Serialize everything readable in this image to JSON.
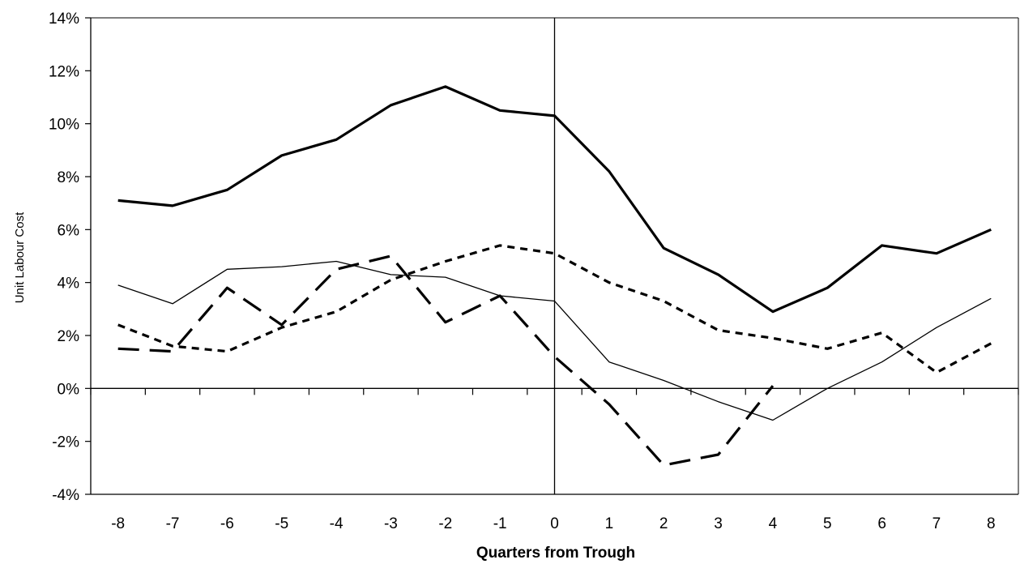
{
  "chart_data": {
    "type": "line",
    "title": "",
    "xlabel": "Quarters from Trough",
    "ylabel": "Unit Labour Cost",
    "x": [
      -8,
      -7,
      -6,
      -5,
      -4,
      -3,
      -2,
      -1,
      0,
      1,
      2,
      3,
      4,
      5,
      6,
      7,
      8
    ],
    "x_tick_labels": [
      "-8",
      "-7",
      "-6",
      "-5",
      "-4",
      "-3",
      "-2",
      "-1",
      "0",
      "1",
      "2",
      "3",
      "4",
      "5",
      "6",
      "7",
      "8"
    ],
    "y_tick_values": [
      -4,
      -2,
      0,
      2,
      4,
      6,
      8,
      10,
      12,
      14
    ],
    "y_tick_labels": [
      "-4%",
      "-2%",
      "0%",
      "2%",
      "4%",
      "6%",
      "8%",
      "10%",
      "12%",
      "14%"
    ],
    "ylim": [
      -4,
      14
    ],
    "xlim": [
      -8.5,
      8.5
    ],
    "grid": false,
    "legend": "none",
    "series": [
      {
        "style": "thick-solid",
        "color": "#000000",
        "values": [
          7.1,
          6.9,
          7.5,
          8.8,
          9.4,
          10.7,
          11.4,
          10.5,
          10.3,
          8.2,
          5.3,
          4.3,
          2.9,
          3.8,
          5.4,
          5.1,
          6.0
        ]
      },
      {
        "style": "thin-solid",
        "color": "#000000",
        "values": [
          3.9,
          3.2,
          4.5,
          4.6,
          4.8,
          4.3,
          4.2,
          3.5,
          3.3,
          1.0,
          0.3,
          -0.5,
          -1.2,
          0.0,
          1.0,
          2.3,
          3.4
        ]
      },
      {
        "style": "short-dash",
        "color": "#000000",
        "values": [
          2.4,
          1.6,
          1.4,
          2.3,
          2.9,
          4.1,
          4.8,
          5.4,
          5.1,
          4.0,
          3.3,
          2.2,
          1.9,
          1.5,
          2.1,
          0.6,
          1.7
        ]
      },
      {
        "style": "long-dash",
        "color": "#000000",
        "values": [
          1.5,
          1.4,
          3.8,
          2.4,
          4.5,
          5.0,
          2.5,
          3.5,
          1.2,
          -0.6,
          -2.9,
          -2.5,
          0.1,
          null,
          null,
          null,
          null
        ]
      }
    ]
  }
}
